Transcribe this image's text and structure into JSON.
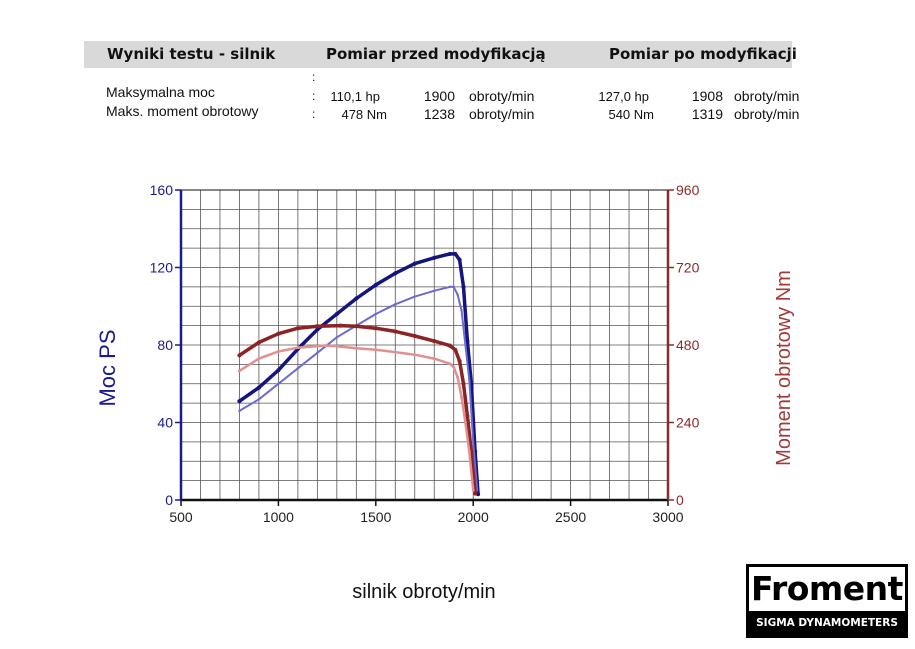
{
  "header": {
    "title": "Wyniki testu - silnik",
    "before_label": "Pomiar przed modyfikacją",
    "after_label": "Pomiar po modyfikacji"
  },
  "results": {
    "separator": ":",
    "rows": [
      {
        "label": "Maksymalna moc",
        "before_value": "110,1 hp",
        "before_rpm": "1900",
        "before_unit": "obroty/min",
        "after_value": "127,0 hp",
        "after_rpm": "1908",
        "after_unit": "obroty/min"
      },
      {
        "label": "Maks. moment obrotowy",
        "before_value": "478 Nm",
        "before_rpm": "1238",
        "before_unit": "obroty/min",
        "after_value": "540 Nm",
        "after_rpm": "1319",
        "after_unit": "obroty/min"
      }
    ]
  },
  "logo": {
    "brand": "Froment",
    "subtitle": "SIGMA DYNAMOMETERS"
  },
  "chart_data": {
    "type": "line",
    "xlabel": "silnik obroty/min",
    "ylabel_left": "Moc PS",
    "ylabel_right": "Moment obrotowy Nm",
    "xlim": [
      500,
      3000
    ],
    "ylim_left": [
      0,
      160
    ],
    "ylim_right": [
      0,
      960
    ],
    "x_ticks": [
      500,
      1000,
      1500,
      2000,
      2500,
      3000
    ],
    "y_left_ticks": [
      0,
      40,
      80,
      120,
      160
    ],
    "y_right_ticks": [
      0,
      240,
      480,
      720,
      960
    ],
    "grid": true,
    "colors": {
      "left_axis": "#1a1a8c",
      "right_axis": "#8b2a2a"
    },
    "series": [
      {
        "axis": "left",
        "color": "#15157f",
        "width": 3.5,
        "x": [
          800,
          900,
          1000,
          1100,
          1200,
          1300,
          1400,
          1500,
          1600,
          1700,
          1800,
          1880,
          1908,
          1930,
          1950,
          1970,
          1990,
          2010,
          2025
        ],
        "y": [
          51,
          58,
          67,
          78,
          88,
          96,
          104,
          111,
          117,
          122,
          125,
          127,
          127,
          124,
          110,
          82,
          60,
          25,
          3
        ]
      },
      {
        "axis": "left",
        "color": "#6b6bd0",
        "width": 2,
        "x": [
          800,
          900,
          1000,
          1100,
          1200,
          1300,
          1400,
          1500,
          1600,
          1700,
          1800,
          1880,
          1900,
          1920,
          1940,
          1960,
          1980,
          2000,
          2020
        ],
        "y": [
          46,
          52,
          60,
          68,
          76,
          84,
          90,
          96,
          101,
          105,
          108,
          110,
          110,
          106,
          98,
          80,
          62,
          30,
          5
        ]
      },
      {
        "axis": "right",
        "color": "#8b2424",
        "width": 3.5,
        "x": [
          800,
          900,
          1000,
          1100,
          1200,
          1319,
          1400,
          1500,
          1600,
          1700,
          1800,
          1880,
          1908,
          1930,
          1950,
          1970,
          1990,
          2010
        ],
        "y": [
          448,
          488,
          515,
          532,
          538,
          540,
          538,
          532,
          522,
          508,
          492,
          478,
          465,
          430,
          360,
          260,
          150,
          20
        ]
      },
      {
        "axis": "right",
        "color": "#e09090",
        "width": 2.5,
        "x": [
          800,
          900,
          1000,
          1100,
          1238,
          1300,
          1400,
          1500,
          1600,
          1700,
          1800,
          1880,
          1900,
          1920,
          1940,
          1960,
          1980,
          2000
        ],
        "y": [
          400,
          438,
          460,
          472,
          478,
          476,
          470,
          465,
          458,
          450,
          438,
          422,
          412,
          380,
          320,
          240,
          150,
          30
        ]
      }
    ]
  }
}
